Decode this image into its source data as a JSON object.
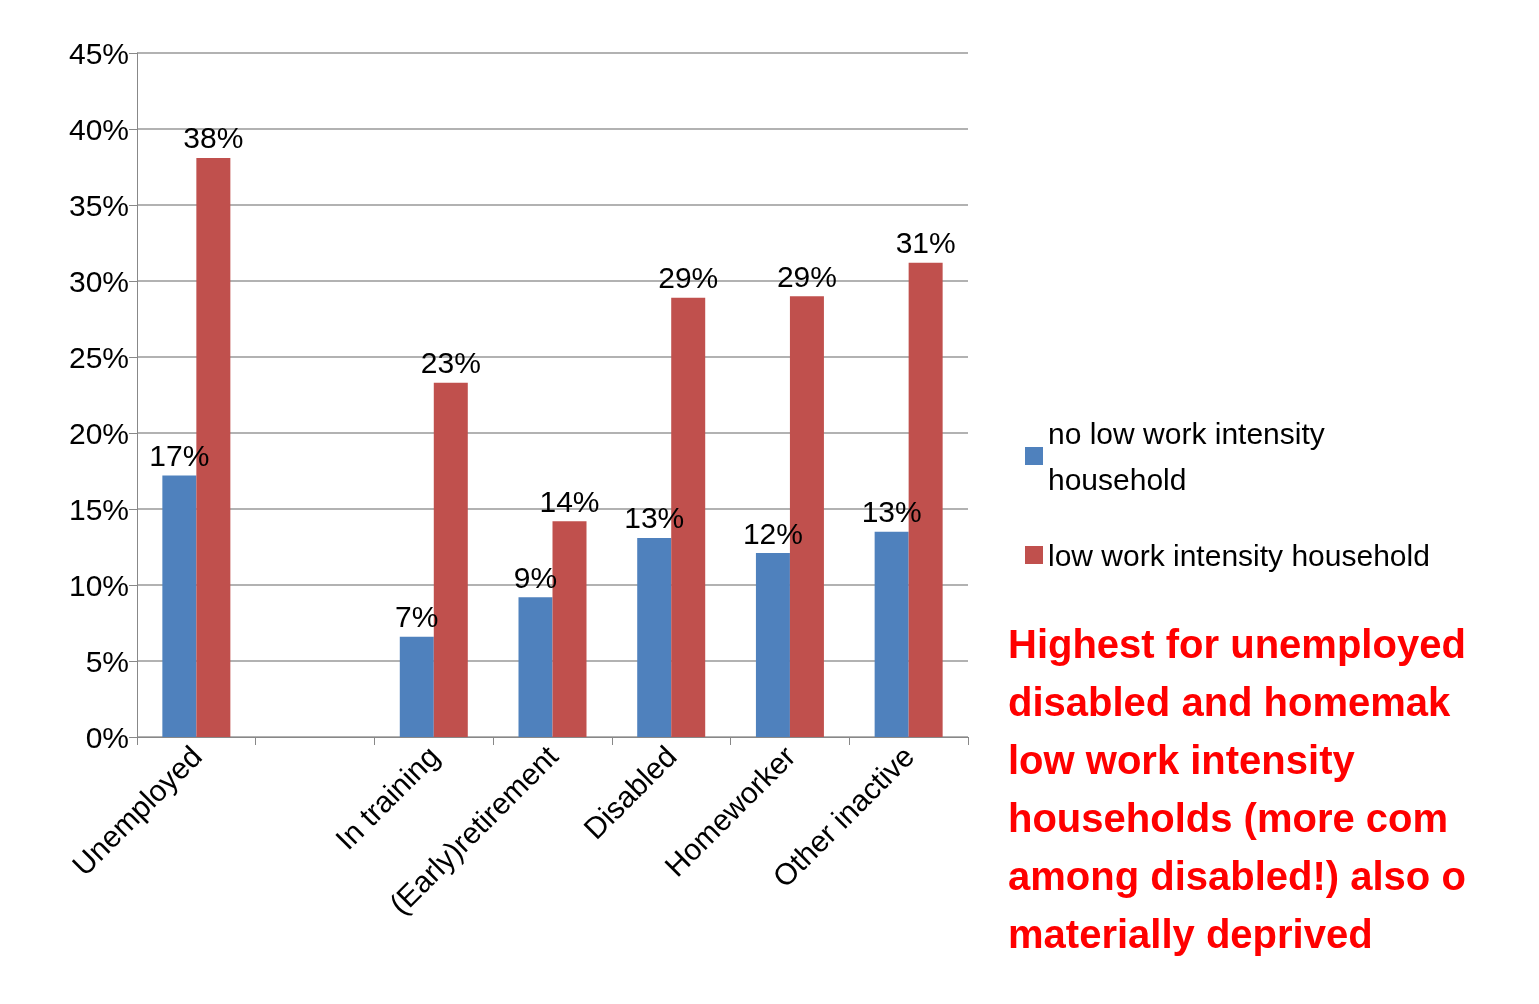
{
  "chart_data": {
    "type": "bar",
    "categories": [
      "Unemployed",
      null,
      "In training",
      "(Early)retirement",
      "Disabled",
      "Homeworker",
      "Other inactive"
    ],
    "series": [
      {
        "name": "no low work intensity household",
        "color": "#4f81bd",
        "values": [
          17.2,
          null,
          6.6,
          9.2,
          13.1,
          12.1,
          13.5
        ],
        "value_labels": [
          "17%",
          null,
          "7%",
          "9%",
          "13%",
          "12%",
          "13%"
        ]
      },
      {
        "name": "low work intensity household",
        "color": "#c0504d",
        "values": [
          38.1,
          null,
          23.3,
          14.2,
          28.9,
          29.0,
          31.2
        ],
        "value_labels": [
          "38%",
          null,
          "23%",
          "14%",
          "29%",
          "29%",
          "31%"
        ]
      }
    ],
    "ylim": [
      0,
      45
    ],
    "yticks": [
      {
        "value": 0,
        "label": "0%"
      },
      {
        "value": 5,
        "label": "5%"
      },
      {
        "value": 10,
        "label": "10%"
      },
      {
        "value": 15,
        "label": "15%"
      },
      {
        "value": 20,
        "label": "20%"
      },
      {
        "value": 25,
        "label": "25%"
      },
      {
        "value": 30,
        "label": "30%"
      },
      {
        "value": 35,
        "label": "35%"
      },
      {
        "value": 40,
        "label": "40%"
      },
      {
        "value": 45,
        "label": "45%"
      }
    ],
    "grid": "y",
    "legend": "right",
    "annotations": [
      "Highest for unemployed\ndisabled and homemak\nlow work intensity\nhouseholds (more com\namong disabled!) also o\nmaterially deprived"
    ]
  }
}
